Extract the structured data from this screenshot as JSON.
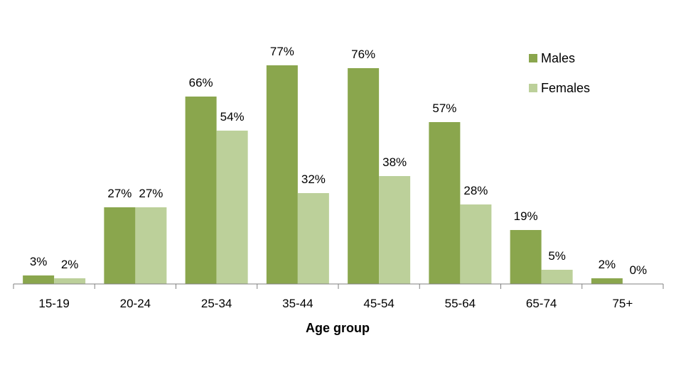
{
  "chart_data": {
    "type": "bar",
    "title": "",
    "xlabel": "Age group",
    "ylabel": "",
    "categories": [
      "15-19",
      "20-24",
      "25-34",
      "35-44",
      "45-54",
      "55-64",
      "65-74",
      "75+"
    ],
    "series": [
      {
        "name": "Males",
        "color": "#8aa64d",
        "values": [
          3,
          27,
          66,
          77,
          76,
          57,
          19,
          2
        ],
        "labels": [
          "3%",
          "27%",
          "66%",
          "77%",
          "76%",
          "57%",
          "19%",
          "2%"
        ]
      },
      {
        "name": "Females",
        "color": "#bcd09a",
        "values": [
          2,
          27,
          54,
          32,
          38,
          28,
          5,
          0
        ],
        "labels": [
          "2%",
          "27%",
          "54%",
          "32%",
          "38%",
          "28%",
          "5%",
          "0%"
        ]
      }
    ],
    "ylim": [
      0,
      80
    ],
    "grid": false,
    "legend_position": "top-right",
    "axis_color": "#808080"
  }
}
